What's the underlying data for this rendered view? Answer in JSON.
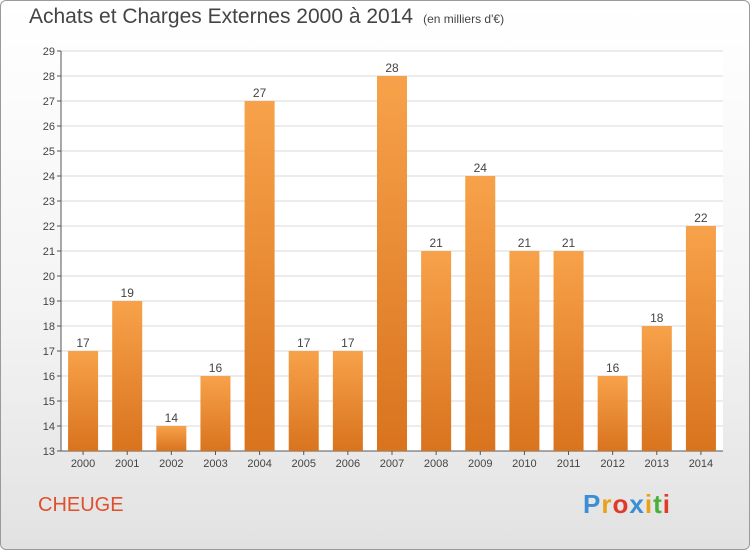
{
  "header": {
    "title": "Achats et Charges Externes 2000 à 2014",
    "unit": "(en milliers d'€)"
  },
  "footer": {
    "commune": "CHEUGE",
    "logo_letters": [
      "P",
      "r",
      "o",
      "x",
      "i",
      "t",
      "i"
    ],
    "logo_colors": [
      "#3a8fd4",
      "#e8a21a",
      "#e03a2a",
      "#3a8fd4",
      "#e8a21a",
      "#4caf3a",
      "#e03a2a"
    ]
  },
  "colors": {
    "bar_light": "#f7a24a",
    "bar_dark": "#d9731e",
    "grid": "#d8d8d8",
    "axis": "#555555"
  },
  "chart_data": {
    "type": "bar",
    "title": "Achats et Charges Externes 2000 à 2014",
    "subtitle": "(en milliers d'€)",
    "categories": [
      "2000",
      "2001",
      "2002",
      "2003",
      "2004",
      "2005",
      "2006",
      "2007",
      "2008",
      "2009",
      "2010",
      "2011",
      "2012",
      "2013",
      "2014"
    ],
    "values": [
      17,
      19,
      14,
      16,
      27,
      17,
      17,
      28,
      21,
      24,
      21,
      21,
      16,
      18,
      22
    ],
    "ylim": [
      13,
      29
    ],
    "yticks": [
      13,
      14,
      15,
      16,
      17,
      18,
      19,
      20,
      21,
      22,
      23,
      24,
      25,
      26,
      27,
      28,
      29
    ],
    "grid": true,
    "xlabel": "",
    "ylabel": ""
  }
}
